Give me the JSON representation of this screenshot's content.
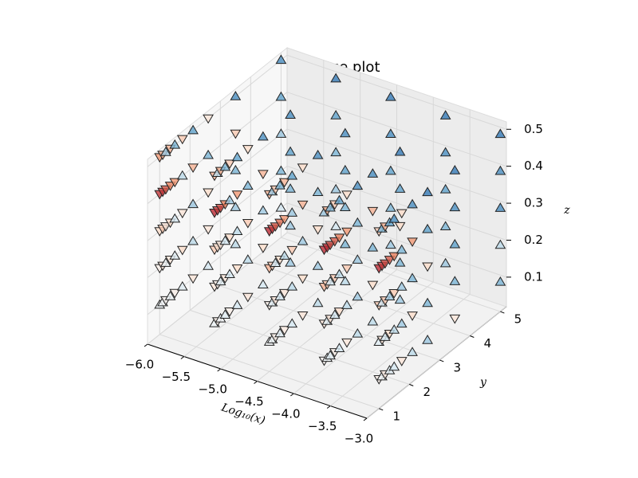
{
  "chart_data": {
    "type": "scatter3d",
    "title": "Difference plot",
    "x_label": "Log₁₀(x)",
    "y_label": "y",
    "z_label": "z",
    "xlim": [
      -6,
      -3
    ],
    "ylim": [
      0.6,
      5.2
    ],
    "zlim": [
      0.02,
      0.52
    ],
    "xticks": [
      {
        "value": -6,
        "label": "−6.0"
      },
      {
        "value": -5.5,
        "label": "−5.5"
      },
      {
        "value": -5,
        "label": "−5.0"
      },
      {
        "value": -4.5,
        "label": "−4.5"
      },
      {
        "value": -4,
        "label": "−4.0"
      },
      {
        "value": -3.5,
        "label": "−3.5"
      },
      {
        "value": -3,
        "label": "−3.0"
      }
    ],
    "yticks": [
      1,
      2,
      3,
      4,
      5
    ],
    "zticks": [
      0.1,
      0.2,
      0.3,
      0.4,
      0.5
    ],
    "grid": true,
    "colormap": [
      "#b2182b",
      "#ef8a62",
      "#fddbc7",
      "#f7f7f7",
      "#d1e5f0",
      "#67a9cf",
      "#2166ac"
    ],
    "clim": [
      -1,
      1
    ],
    "y": [
      1,
      1.1,
      1.2,
      1.35,
      1.5,
      1.75,
      2.1,
      2.6,
      3.5,
      5
    ],
    "series": [
      {
        "x": -6,
        "z": 0.1,
        "values": [
          0.1,
          0.05,
          -0.05,
          0.1,
          -0.1,
          0.2,
          -0.2,
          0.3,
          0.4,
          0.3
        ]
      },
      {
        "x": -6,
        "z": 0.2,
        "values": [
          -0.1,
          -0.2,
          0.1,
          -0.2,
          0.2,
          -0.3,
          0.4,
          -0.2,
          0.5,
          0.6
        ]
      },
      {
        "x": -6,
        "z": 0.3,
        "values": [
          -0.3,
          -0.4,
          -0.2,
          -0.3,
          0.3,
          -0.2,
          0.5,
          -0.3,
          0.6,
          0.5
        ]
      },
      {
        "x": -6,
        "z": 0.4,
        "values": [
          -0.9,
          -0.9,
          -0.8,
          -0.7,
          -0.6,
          0.4,
          -0.5,
          0.6,
          -0.4,
          0.7
        ]
      },
      {
        "x": -6,
        "z": 0.5,
        "values": [
          -0.6,
          -0.5,
          0.5,
          -0.5,
          0.6,
          -0.4,
          0.7,
          -0.2,
          0.8,
          0.8
        ]
      },
      {
        "x": -5.25,
        "z": 0.1,
        "values": [
          0.1,
          -0.1,
          0.05,
          0.2,
          -0.1,
          0.3,
          -0.2,
          0.3,
          0.5,
          0.3
        ]
      },
      {
        "x": -5.25,
        "z": 0.2,
        "values": [
          -0.2,
          -0.1,
          0.2,
          -0.2,
          0.3,
          -0.3,
          0.4,
          -0.3,
          0.5,
          0.5
        ]
      },
      {
        "x": -5.25,
        "z": 0.3,
        "values": [
          -0.4,
          -0.3,
          -0.2,
          0.3,
          -0.3,
          0.4,
          -0.4,
          0.5,
          0.6,
          0.6
        ]
      },
      {
        "x": -5.25,
        "z": 0.4,
        "values": [
          -0.95,
          -0.9,
          -0.85,
          -0.7,
          0.5,
          -0.6,
          0.6,
          -0.5,
          0.7,
          0.7
        ]
      },
      {
        "x": -5.25,
        "z": 0.5,
        "values": [
          -0.5,
          0.4,
          -0.5,
          0.6,
          -0.4,
          0.7,
          -0.3,
          0.8,
          0.8,
          0.9
        ]
      },
      {
        "x": -4.5,
        "z": 0.1,
        "values": [
          0.05,
          0.1,
          -0.1,
          0.2,
          -0.15,
          0.3,
          -0.2,
          0.4,
          0.4,
          0.5
        ]
      },
      {
        "x": -4.5,
        "z": 0.2,
        "values": [
          -0.1,
          0.2,
          -0.2,
          0.3,
          -0.2,
          0.4,
          -0.3,
          0.5,
          0.6,
          0.6
        ]
      },
      {
        "x": -4.5,
        "z": 0.3,
        "values": [
          -0.5,
          -0.4,
          0.3,
          -0.3,
          0.4,
          -0.4,
          0.5,
          -0.3,
          0.6,
          0.7
        ]
      },
      {
        "x": -4.5,
        "z": 0.4,
        "values": [
          -0.95,
          -0.9,
          -0.8,
          -0.75,
          -0.6,
          0.5,
          -0.5,
          0.6,
          0.7,
          0.8
        ]
      },
      {
        "x": -4.5,
        "z": 0.5,
        "values": [
          -0.5,
          0.5,
          -0.4,
          0.6,
          -0.5,
          0.7,
          -0.3,
          0.8,
          0.8,
          0.9
        ]
      },
      {
        "x": -3.75,
        "z": 0.1,
        "values": [
          -0.05,
          0.1,
          0.2,
          -0.1,
          0.3,
          -0.2,
          0.4,
          0.4,
          0.5,
          0.5
        ]
      },
      {
        "x": -3.75,
        "z": 0.2,
        "values": [
          -0.2,
          0.2,
          -0.2,
          0.3,
          -0.3,
          0.4,
          0.5,
          -0.3,
          0.6,
          0.6
        ]
      },
      {
        "x": -3.75,
        "z": 0.3,
        "values": [
          -0.5,
          -0.4,
          0.3,
          -0.4,
          0.4,
          -0.4,
          0.5,
          0.6,
          -0.3,
          0.7
        ]
      },
      {
        "x": -3.75,
        "z": 0.4,
        "values": [
          -0.95,
          -0.95,
          -0.85,
          -0.8,
          -0.7,
          -0.6,
          0.6,
          -0.5,
          0.7,
          0.8
        ]
      },
      {
        "x": -3.75,
        "z": 0.5,
        "values": [
          0.5,
          -0.5,
          0.6,
          -0.4,
          0.7,
          -0.3,
          0.8,
          0.8,
          0.9,
          0.9
        ]
      },
      {
        "x": -3,
        "z": 0.1,
        "values": [
          -0.1,
          0.1,
          -0.15,
          0.2,
          0.3,
          -0.2,
          0.4,
          0.5,
          -0.2,
          0.6
        ]
      },
      {
        "x": -3,
        "z": 0.2,
        "values": [
          0.2,
          -0.2,
          0.3,
          -0.3,
          0.4,
          0.5,
          -0.3,
          0.6,
          0.6,
          0.4
        ]
      },
      {
        "x": -3,
        "z": 0.3,
        "values": [
          -0.4,
          0.3,
          -0.4,
          0.5,
          -0.4,
          0.5,
          0.6,
          -0.3,
          0.7,
          0.8
        ]
      },
      {
        "x": -3,
        "z": 0.4,
        "values": [
          -0.95,
          -0.9,
          -0.85,
          -0.8,
          -0.7,
          0.6,
          -0.6,
          0.7,
          0.8,
          0.8
        ]
      },
      {
        "x": -3,
        "z": 0.5,
        "values": [
          -0.4,
          0.6,
          -0.5,
          0.7,
          0.8,
          -0.3,
          0.8,
          0.9,
          0.9,
          0.9
        ]
      }
    ]
  }
}
